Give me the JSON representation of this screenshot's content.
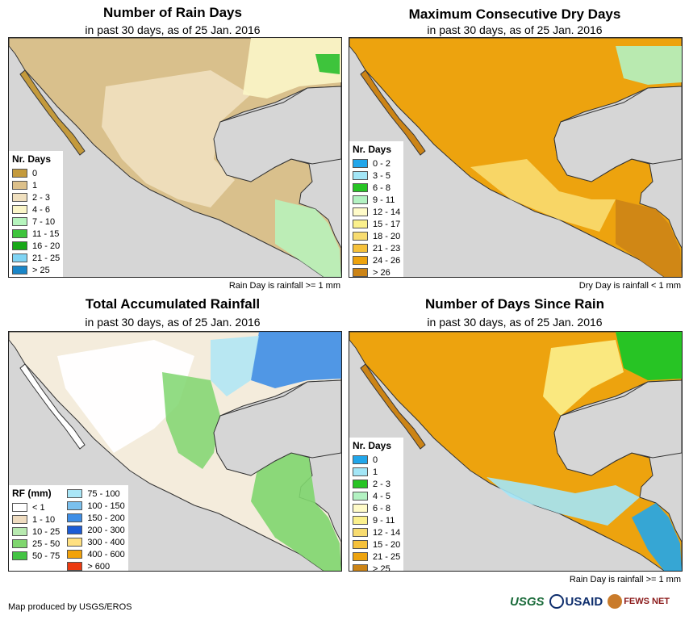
{
  "panels": {
    "rain_days": {
      "title": "Number of Rain Days",
      "subtitle": "in past 30 days, as of 25 Jan. 2016",
      "legend_title": "Nr. Days",
      "note": "Rain Day is rainfall >= 1 mm",
      "legend": [
        {
          "label": "0",
          "color": "#c49a3c"
        },
        {
          "label": "1",
          "color": "#dcc08a"
        },
        {
          "label": "2 - 3",
          "color": "#f0e0bf"
        },
        {
          "label": "4 - 6",
          "color": "#fbf6c8"
        },
        {
          "label": "7 - 10",
          "color": "#b6f5bd"
        },
        {
          "label": "11 - 15",
          "color": "#3ec43c"
        },
        {
          "label": "16 - 20",
          "color": "#18a818"
        },
        {
          "label": "21 - 25",
          "color": "#7fd4f4"
        },
        {
          "label": "> 25",
          "color": "#1a86c8"
        }
      ]
    },
    "dry_days": {
      "title": "Maximum Consecutive Dry Days",
      "subtitle": "in past 30 days, as of 25 Jan. 2016",
      "legend_title": "Nr. Days",
      "note": "Dry Day is rainfall < 1 mm",
      "legend": [
        {
          "label": "0 - 2",
          "color": "#21a6ea"
        },
        {
          "label": "3 - 5",
          "color": "#a3e6f7"
        },
        {
          "label": "6 - 8",
          "color": "#27c424"
        },
        {
          "label": "9 - 11",
          "color": "#b3f2c2"
        },
        {
          "label": "12 - 14",
          "color": "#fffbc8"
        },
        {
          "label": "15 - 17",
          "color": "#fbf08c"
        },
        {
          "label": "18 - 20",
          "color": "#f8dc70"
        },
        {
          "label": "21 - 23",
          "color": "#f6c13a"
        },
        {
          "label": "24 - 26",
          "color": "#eda30e"
        },
        {
          "label": "> 26",
          "color": "#cc8416"
        }
      ]
    },
    "rainfall": {
      "title": "Total Accumulated Rainfall",
      "subtitle": "in past 30 days, as of 25 Jan. 2016",
      "legend_title": "RF (mm)",
      "legend_col1": [
        {
          "label": "< 1",
          "color": "#ffffff"
        },
        {
          "label": "1 - 10",
          "color": "#efdcc0"
        },
        {
          "label": "10 - 25",
          "color": "#b8eab0"
        },
        {
          "label": "25 - 50",
          "color": "#7fd66e"
        },
        {
          "label": "50 - 75",
          "color": "#44c444"
        }
      ],
      "legend_col2": [
        {
          "label": "75 - 100",
          "color": "#a9e6f7"
        },
        {
          "label": "100 - 150",
          "color": "#7ac0ee"
        },
        {
          "label": "150 - 200",
          "color": "#3e8ee6"
        },
        {
          "label": "200 - 300",
          "color": "#1c5cd6"
        },
        {
          "label": "300 - 400",
          "color": "#ffe080"
        },
        {
          "label": "400 - 600",
          "color": "#f2a20a"
        },
        {
          "label": "> 600",
          "color": "#ec3a10"
        }
      ]
    },
    "since_rain": {
      "title": "Number of Days Since Rain",
      "subtitle": "in past 30 days, as of 25 Jan. 2016",
      "legend_title": "Nr. Days",
      "note": "Rain Day is rainfall >= 1 mm",
      "legend": [
        {
          "label": "0",
          "color": "#21a6ea"
        },
        {
          "label": "1",
          "color": "#a3e6f7"
        },
        {
          "label": "2 - 3",
          "color": "#27c424"
        },
        {
          "label": "4 - 5",
          "color": "#b3f2c2"
        },
        {
          "label": "6 - 8",
          "color": "#fffbc8"
        },
        {
          "label": "9 - 11",
          "color": "#fbf08c"
        },
        {
          "label": "12 - 14",
          "color": "#f8dc70"
        },
        {
          "label": "15 - 20",
          "color": "#f6c13a"
        },
        {
          "label": "21 - 25",
          "color": "#eda30e"
        },
        {
          "label": "> 25",
          "color": "#cc8416"
        }
      ]
    }
  },
  "footer": "Map produced by USGS/EROS",
  "logos": {
    "usgs": "USGS",
    "usaid": "USAID",
    "fews": "FEWS NET"
  },
  "colors": {
    "ocean": "#d6d6d6",
    "border": "#222222"
  }
}
